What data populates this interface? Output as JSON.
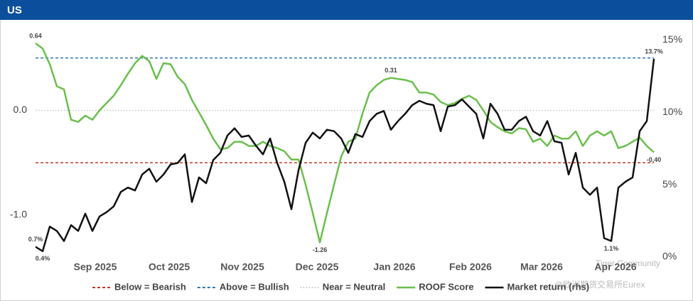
{
  "header": {
    "title": "US"
  },
  "watermarks": [
    "Tiger Community",
    "@欧洲期货交易所Eurex"
  ],
  "chart_data": {
    "type": "line",
    "xlim": [
      0,
      87
    ],
    "xticks": [
      {
        "value": 8.4,
        "label": "Sep 2025"
      },
      {
        "value": 18.8,
        "label": "Oct 2025"
      },
      {
        "value": 29.1,
        "label": "Nov 2025"
      },
      {
        "value": 39.6,
        "label": "Dec 2025"
      },
      {
        "value": 50.5,
        "label": "Jan 2026"
      },
      {
        "value": 61.2,
        "label": "Feb 2026"
      },
      {
        "value": 71.2,
        "label": "Mar 2026"
      },
      {
        "value": 81.6,
        "label": "Apr 2026"
      }
    ],
    "ylim": [
      -1.42,
      0.85
    ],
    "yticks": [
      {
        "value": 0,
        "label": "0.0"
      },
      {
        "value": -1,
        "label": "-1.0"
      }
    ],
    "y2lim": [
      -0.15,
      16.3
    ],
    "y2ticks": [
      {
        "value": 0,
        "label": "0%"
      },
      {
        "value": 5,
        "label": "5%"
      },
      {
        "value": 10,
        "label": "10%"
      },
      {
        "value": 15,
        "label": "15%"
      }
    ],
    "reference_lines": [
      {
        "name": "Below = Bearish",
        "value": -0.5,
        "color": "#c0392b",
        "style": "dashed"
      },
      {
        "name": "Above = Bullish",
        "value": 0.5,
        "color": "#2e75b6",
        "style": "dashed"
      },
      {
        "name": "Near = Neutral",
        "value": 0,
        "color": "#c8c8c8",
        "style": "dotted"
      }
    ],
    "series": [
      {
        "name": "ROOF Score",
        "color": "#6abf4b",
        "values": [
          0.64,
          0.59,
          0.44,
          0.23,
          0.2,
          -0.09,
          -0.11,
          -0.05,
          -0.09,
          0.0,
          0.07,
          0.14,
          0.24,
          0.35,
          0.45,
          0.52,
          0.47,
          0.3,
          0.45,
          0.44,
          0.32,
          0.25,
          0.1,
          -0.02,
          -0.14,
          -0.27,
          -0.37,
          -0.36,
          -0.3,
          -0.3,
          -0.34,
          -0.34,
          -0.3,
          -0.34,
          -0.36,
          -0.39,
          -0.47,
          -0.47,
          -0.71,
          -0.98,
          -1.26,
          -0.98,
          -0.71,
          -0.44,
          -0.3,
          -0.27,
          -0.03,
          0.17,
          0.24,
          0.29,
          0.31,
          0.3,
          0.29,
          0.27,
          0.17,
          0.17,
          0.15,
          0.08,
          0.05,
          0.07,
          0.11,
          0.14,
          0.1,
          0.0,
          -0.11,
          -0.16,
          -0.2,
          -0.22,
          -0.17,
          -0.18,
          -0.3,
          -0.27,
          -0.34,
          -0.24,
          -0.27,
          -0.27,
          -0.2,
          -0.34,
          -0.24,
          -0.2,
          -0.24,
          -0.2,
          -0.36,
          -0.34,
          -0.3,
          -0.26,
          -0.34,
          -0.4
        ],
        "value_labels": [
          "0.64",
          null,
          null,
          null,
          null,
          null,
          null,
          null,
          null,
          null,
          null,
          null,
          null,
          null,
          null,
          null,
          null,
          null,
          null,
          null,
          null,
          null,
          null,
          null,
          null,
          null,
          null,
          null,
          null,
          null,
          null,
          null,
          null,
          null,
          null,
          null,
          null,
          null,
          null,
          null,
          "-1.26",
          null,
          null,
          null,
          null,
          null,
          null,
          null,
          null,
          null,
          "0.31",
          null,
          null,
          null,
          null,
          null,
          null,
          null,
          null,
          null,
          null,
          null,
          null,
          null,
          null,
          null,
          null,
          null,
          null,
          null,
          null,
          null,
          null,
          null,
          null,
          null,
          null,
          null,
          null,
          null,
          null,
          null,
          null,
          null,
          null,
          null,
          null,
          "-0.40"
        ]
      },
      {
        "name": "Market return (rhs)",
        "color": "#111111",
        "axis": "y2",
        "values": [
          0.7,
          0.4,
          2.1,
          1.8,
          1.1,
          2.2,
          1.8,
          3.0,
          1.8,
          2.8,
          3.1,
          3.5,
          4.5,
          4.8,
          4.6,
          5.7,
          6.1,
          5.2,
          5.7,
          6.4,
          6.5,
          7.1,
          3.8,
          5.5,
          5.1,
          6.7,
          7.2,
          8.4,
          8.9,
          8.3,
          8.4,
          7.7,
          7.1,
          8.2,
          6.5,
          5.2,
          3.3,
          6.0,
          7.9,
          8.6,
          8.2,
          8.8,
          8.7,
          8.2,
          7.2,
          8.5,
          8.3,
          9.4,
          9.9,
          10.1,
          8.8,
          9.4,
          9.9,
          10.5,
          10.8,
          10.6,
          10.5,
          8.7,
          10.4,
          10.5,
          10.9,
          10.4,
          9.9,
          8.2,
          10.6,
          9.9,
          8.8,
          8.8,
          9.4,
          9.7,
          8.7,
          8.4,
          9.4,
          8.0,
          7.9,
          5.7,
          7.2,
          4.8,
          4.3,
          4.8,
          1.3,
          1.1,
          4.8,
          5.2,
          5.5,
          8.7,
          9.4,
          13.7
        ],
        "value_labels": [
          "0.7%",
          "0.4%",
          null,
          null,
          null,
          null,
          null,
          null,
          null,
          null,
          null,
          null,
          null,
          null,
          null,
          null,
          null,
          null,
          null,
          null,
          null,
          null,
          null,
          null,
          null,
          null,
          null,
          null,
          null,
          null,
          null,
          null,
          null,
          null,
          null,
          null,
          null,
          null,
          null,
          null,
          null,
          null,
          null,
          null,
          null,
          null,
          null,
          null,
          null,
          null,
          null,
          null,
          null,
          null,
          null,
          null,
          null,
          null,
          null,
          null,
          null,
          null,
          null,
          null,
          null,
          null,
          null,
          null,
          null,
          null,
          null,
          null,
          null,
          null,
          null,
          null,
          null,
          null,
          null,
          null,
          null,
          "1.1%",
          null,
          null,
          null,
          null,
          null,
          "13.7%"
        ]
      }
    ]
  }
}
